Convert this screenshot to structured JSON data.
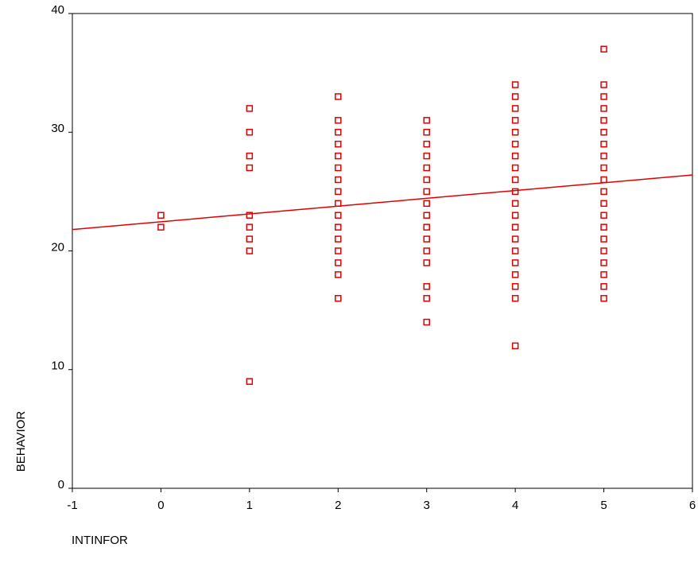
{
  "chart_data": {
    "type": "scatter",
    "x_label": "INTINFOR",
    "y_label": "BEHAVIOR",
    "xlim": [
      -1,
      6
    ],
    "xticks": [
      -1,
      0,
      1,
      2,
      3,
      4,
      5,
      6
    ],
    "ylim": [
      0,
      40
    ],
    "yticks": [
      0,
      10,
      20,
      30,
      40
    ],
    "grid": false,
    "series": [
      {
        "color": "#e00000",
        "marker": "square",
        "x": [
          0,
          0,
          1,
          1,
          1,
          1,
          1,
          1,
          1,
          1,
          1,
          2,
          2,
          2,
          2,
          2,
          2,
          2,
          2,
          2,
          2,
          2,
          2,
          2,
          2,
          2,
          2,
          3,
          3,
          3,
          3,
          3,
          3,
          3,
          3,
          3,
          3,
          3,
          3,
          3,
          3,
          3,
          3,
          4,
          4,
          4,
          4,
          4,
          4,
          4,
          4,
          4,
          4,
          4,
          4,
          4,
          4,
          4,
          4,
          4,
          4,
          4,
          4,
          5,
          5,
          5,
          5,
          5,
          5,
          5,
          5,
          5,
          5,
          5,
          5,
          5,
          5,
          5,
          5,
          5,
          5,
          5,
          5
        ],
        "values": [
          23,
          22,
          32,
          30,
          28,
          27,
          23,
          22,
          21,
          20,
          9,
          33,
          31,
          30,
          29,
          28,
          27,
          26,
          25,
          24,
          23,
          22,
          21,
          20,
          19,
          18,
          16,
          31,
          30,
          29,
          28,
          27,
          26,
          25,
          24,
          23,
          22,
          21,
          20,
          19,
          17,
          16,
          14,
          34,
          33,
          32,
          31,
          30,
          29,
          28,
          27,
          26,
          25,
          24,
          23,
          22,
          21,
          20,
          19,
          18,
          17,
          16,
          12,
          37,
          34,
          33,
          32,
          31,
          30,
          29,
          28,
          27,
          26,
          25,
          24,
          23,
          22,
          21,
          20,
          19,
          18,
          17,
          16
        ]
      },
      {
        "color": "#e00000",
        "marker": "line",
        "x": [
          -1,
          6
        ],
        "values": [
          21.8,
          26.4
        ]
      }
    ]
  }
}
